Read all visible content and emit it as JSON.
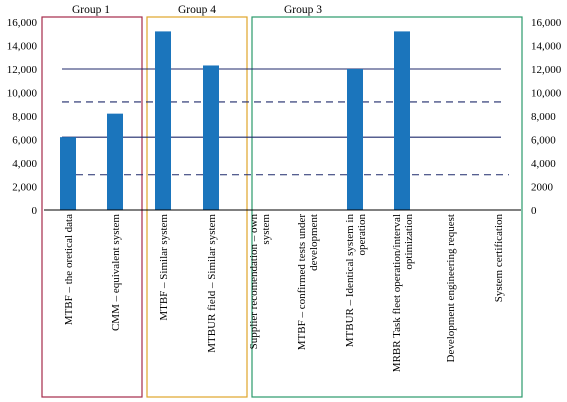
{
  "chart_data": {
    "type": "bar",
    "categories": [
      [
        "MTBF – the oretical data"
      ],
      [
        "CMM – equivalent system"
      ],
      [
        "MTBF – Similar system"
      ],
      [
        "MTBUR field – Similar system"
      ],
      [
        "Supplier recomendation – own",
        "system"
      ],
      [
        "MTBF – confirmed tests under",
        "development"
      ],
      [
        "MTBUR – Identical system in",
        "operation"
      ],
      [
        "MRBR Task fleet operation/interval",
        "optimization"
      ],
      [
        "Development engineering request"
      ],
      [
        "System certification"
      ]
    ],
    "values": [
      6200,
      8200,
      15200,
      12300,
      null,
      null,
      12000,
      15200,
      null,
      null
    ],
    "ylim": [
      0,
      16000
    ],
    "yticks": [
      "0",
      "2,000",
      "4,000",
      "6,000",
      "8,000",
      "10,000",
      "12,000",
      "14,000",
      "16,000"
    ],
    "ytick_values": [
      0,
      2000,
      4000,
      6000,
      8000,
      10000,
      12000,
      14000,
      16000
    ],
    "right_axis_ticks": [
      "0",
      "2000",
      "4,000",
      "6,000",
      "8,000",
      "10,000",
      "12,000",
      "14,000",
      "16,000"
    ],
    "bar_color": "#1b75bc",
    "reference_lines": [
      {
        "value": 12000,
        "style": "solid",
        "color": "#1f2a6b"
      },
      {
        "value": 9200,
        "style": "dashed",
        "color": "#1f2a6b"
      },
      {
        "value": 6200,
        "style": "solid",
        "color": "#1f2a6b"
      },
      {
        "value": 3000,
        "style": "dashed",
        "color": "#1f2a6b"
      }
    ],
    "groups": [
      {
        "label": "Group 1",
        "color": "#a52a4a",
        "from": 0,
        "to": 1
      },
      {
        "label": "Group 4",
        "color": "#e0a52a",
        "from": 2,
        "to": 3
      },
      {
        "label": "Group 3",
        "color": "#2a9a6a",
        "from": 4,
        "to": 9
      }
    ]
  }
}
